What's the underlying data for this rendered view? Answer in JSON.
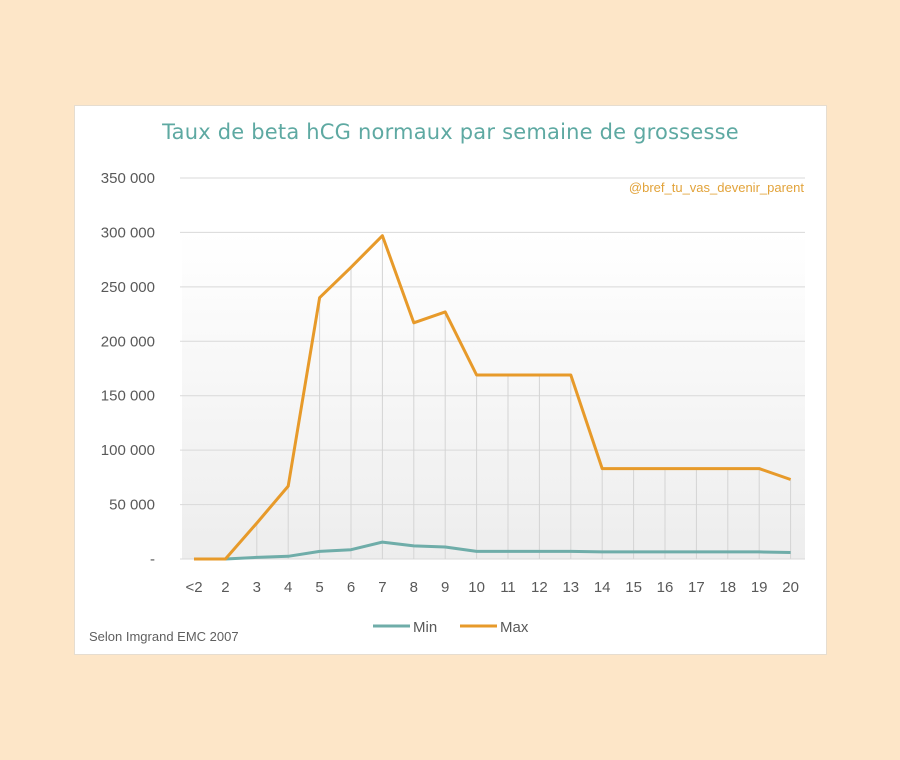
{
  "chart_data": {
    "type": "line",
    "title": "Taux de beta hCG normaux par semaine de grossesse",
    "xlabel": "",
    "ylabel": "",
    "categories": [
      "<2",
      "2",
      "3",
      "4",
      "5",
      "6",
      "7",
      "8",
      "9",
      "10",
      "11",
      "12",
      "13",
      "14",
      "15",
      "16",
      "17",
      "18",
      "19",
      "20"
    ],
    "series": [
      {
        "name": "Min",
        "color": "#6fada9",
        "values": [
          0,
          0,
          1500,
          2500,
          7000,
          8500,
          15500,
          12000,
          11000,
          7000,
          7000,
          7000,
          7000,
          6500,
          6500,
          6500,
          6500,
          6500,
          6500,
          6000
        ]
      },
      {
        "name": "Max",
        "color": "#e79a2a",
        "values": [
          0,
          0,
          33000,
          67000,
          240000,
          268000,
          297000,
          217000,
          227000,
          169000,
          169000,
          169000,
          169000,
          83000,
          83000,
          83000,
          83000,
          83000,
          83000,
          73000
        ]
      }
    ],
    "ylim": [
      0,
      350000
    ],
    "yticks": [
      0,
      50000,
      100000,
      150000,
      200000,
      250000,
      300000,
      350000
    ],
    "ytick_labels": [
      "-",
      "50 000",
      "100 000",
      "150 000",
      "200 000",
      "250 000",
      "300 000",
      "350 000"
    ],
    "grid": true,
    "legend_position": "bottom"
  },
  "header": {
    "title": "Taux de beta hCG normaux par semaine de grossesse",
    "handle": "@bref_tu_vas_devenir_parent"
  },
  "footer": {
    "source": "Selon Imgrand EMC 2007"
  },
  "legend": {
    "min_label": "Min",
    "max_label": "Max"
  },
  "colors": {
    "background": "#fde6c8",
    "title": "#5ea9a2",
    "handle": "#e2a33a",
    "min": "#6fada9",
    "max": "#e79a2a"
  }
}
